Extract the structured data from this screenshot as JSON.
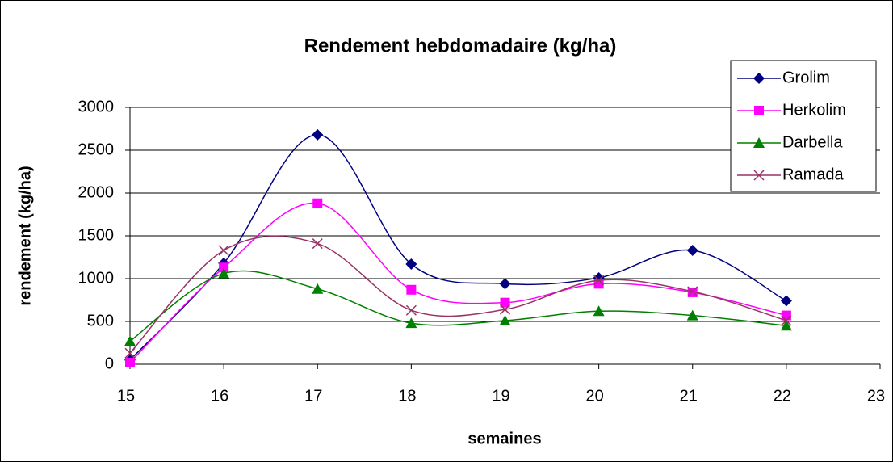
{
  "chart_data": {
    "type": "line",
    "title": "Rendement hebdomadaire (kg/ha)",
    "x_label": "semaines",
    "y_label": "rendement (kg/ha)",
    "x": [
      15,
      16,
      17,
      18,
      19,
      20,
      21,
      22
    ],
    "series": [
      {
        "name": "Grolim",
        "color": "#000080",
        "marker": "diamond",
        "values": [
          50,
          1180,
          2680,
          1170,
          940,
          1010,
          1330,
          740
        ]
      },
      {
        "name": "Herkolim",
        "color": "#ff00ff",
        "marker": "square",
        "values": [
          20,
          1130,
          1880,
          870,
          720,
          940,
          840,
          570
        ]
      },
      {
        "name": "Darbella",
        "color": "#008000",
        "marker": "triangle",
        "values": [
          270,
          1060,
          880,
          480,
          510,
          620,
          570,
          450
        ]
      },
      {
        "name": "Ramada",
        "color": "#993366",
        "marker": "x",
        "values": [
          130,
          1330,
          1410,
          630,
          640,
          980,
          850,
          510
        ]
      }
    ],
    "xlim": [
      15,
      23
    ],
    "xticks": [
      15,
      16,
      17,
      18,
      19,
      20,
      21,
      22,
      23
    ],
    "ylim": [
      0,
      3000
    ],
    "yticks": [
      0,
      500,
      1000,
      1500,
      2000,
      2500,
      3000
    ],
    "grid": true,
    "smooth": true,
    "legend": "upper right"
  }
}
